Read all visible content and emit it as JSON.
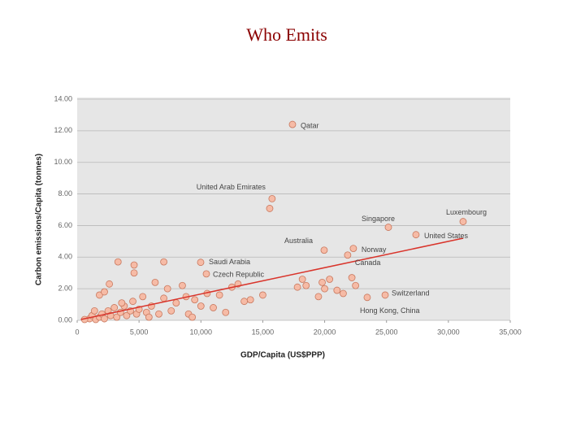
{
  "chart_data": {
    "type": "scatter",
    "title": "Who Emits",
    "x_label": "GDP/Capita  (US$PPP)",
    "y_label": "Carbon  emissions/Capita  (tonnes)",
    "xlim": [
      0,
      35000
    ],
    "ylim": [
      0,
      14
    ],
    "xticks": [
      0,
      {
        "value": 5000,
        "label": "5,000"
      },
      {
        "value": 10000,
        "label": "10,000"
      },
      {
        "value": 15000,
        "label": "15,000"
      },
      {
        "value": 20000,
        "label": "20,000"
      },
      {
        "value": 25000,
        "label": "25,000"
      },
      {
        "value": 30000,
        "label": "30,000"
      },
      {
        "value": 35000,
        "label": "35,000"
      }
    ],
    "yticks": [
      {
        "value": 0,
        "label": "0.00"
      },
      {
        "value": 2,
        "label": "2.00"
      },
      {
        "value": 4,
        "label": "4.00"
      },
      {
        "value": 6,
        "label": "6.00"
      },
      {
        "value": 8,
        "label": "8.00"
      },
      {
        "value": 10,
        "label": "10.00"
      },
      {
        "value": 12,
        "label": "12.00"
      },
      {
        "value": 14,
        "label": "14.00"
      }
    ],
    "grid": true,
    "color": "#f6bba6",
    "x": [
      17400,
      15750,
      25150,
      31190,
      27380,
      19960,
      22320,
      21860,
      9980,
      10440,
      24890,
      23440,
      1000,
      1200,
      1500,
      1800,
      2000,
      2200,
      2500,
      2700,
      3000,
      3200,
      3500,
      3800,
      4000,
      4300,
      4500,
      4800,
      5000,
      5300,
      5600,
      6000,
      6300,
      6600,
      7000,
      7300,
      7600,
      8000,
      8500,
      9000,
      9500,
      10000,
      10500,
      11000,
      11500,
      12000,
      12500,
      13000,
      13500,
      14000,
      15000,
      3300,
      4600,
      4600,
      7000,
      2600,
      1800,
      2200,
      15560,
      17800,
      18200,
      18500,
      19500,
      19800,
      20000,
      20400,
      21000,
      21500,
      22200,
      22500,
      8800,
      9300,
      5800,
      600,
      1400,
      3600
    ],
    "values": [
      12.4,
      7.7,
      5.89,
      6.25,
      5.42,
      4.44,
      4.55,
      4.13,
      3.67,
      2.94,
      1.6,
      1.45,
      0.1,
      0.3,
      0.05,
      0.2,
      0.4,
      0.1,
      0.6,
      0.3,
      0.8,
      0.2,
      0.5,
      0.9,
      0.3,
      0.6,
      1.2,
      0.4,
      0.7,
      1.5,
      0.5,
      0.9,
      2.4,
      0.4,
      1.4,
      2.0,
      0.6,
      1.1,
      2.2,
      0.4,
      1.3,
      0.9,
      1.7,
      0.8,
      1.6,
      0.5,
      2.1,
      2.3,
      1.2,
      1.3,
      1.6,
      3.7,
      3.5,
      3.0,
      3.7,
      2.3,
      1.6,
      1.8,
      7.08,
      2.1,
      2.6,
      2.2,
      1.5,
      2.4,
      2.0,
      2.6,
      1.9,
      1.7,
      2.7,
      2.2,
      1.5,
      0.2,
      0.2,
      0.05,
      0.6,
      1.1
    ],
    "point_labels": [
      "Qatar",
      "United Arab Emirates",
      "Singapore",
      "Luxembourg",
      "United States",
      "Australia",
      "Norway",
      "Canada",
      "Saudi Arabia",
      "Czech Republic",
      "Switzerland",
      "Hong Kong, China",
      null,
      null,
      null,
      null,
      null,
      null,
      null,
      null,
      null,
      null,
      null,
      null,
      null,
      null,
      null,
      null,
      null,
      null,
      null,
      null,
      null,
      null,
      null,
      null,
      null,
      null,
      null,
      null,
      null,
      null,
      null,
      null,
      null,
      null,
      null,
      null,
      null,
      null,
      null,
      null,
      null,
      null,
      null,
      null,
      null,
      null,
      null,
      null,
      null,
      null,
      null,
      null,
      null,
      null,
      null,
      null,
      null,
      null,
      null,
      null,
      null,
      null,
      null,
      null
    ],
    "trendline": {
      "color": "#d9342b",
      "x": [
        300,
        31200
      ],
      "values": [
        0.05,
        5.2
      ]
    }
  }
}
